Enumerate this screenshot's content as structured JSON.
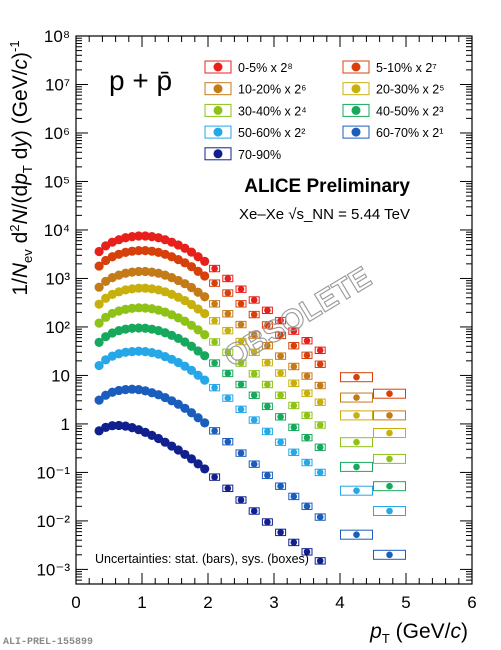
{
  "chart_data": {
    "type": "scatter",
    "title": "ALICE Preliminary",
    "particle_label": "p + p̄",
    "system_label": "Xe–Xe √s_NN = 5.44 TeV",
    "footnote": "Uncertainties: stat. (bars), sys. (boxes)",
    "watermark": "OBSOLETE",
    "figure_id": "ALI-PREL-155899",
    "xlabel": "p_T (GeV/c)",
    "ylabel": "1/N_ev d²N/(dp_T dy) (GeV/c)⁻¹",
    "xlim": [
      0,
      6
    ],
    "ylim": [
      0.0005,
      100000000
    ],
    "yscale": "log",
    "x_ticks": [
      "0",
      "1",
      "2",
      "3",
      "4",
      "5",
      "6"
    ],
    "y_ticks": [
      "10⁻³",
      "10⁻²",
      "10⁻¹",
      "1",
      "10",
      "10²",
      "10³",
      "10⁴",
      "10⁵",
      "10⁶",
      "10⁷",
      "10⁸"
    ],
    "legend_position": "top-right",
    "x": [
      0.35,
      0.45,
      0.55,
      0.65,
      0.75,
      0.85,
      0.95,
      1.05,
      1.15,
      1.25,
      1.35,
      1.45,
      1.55,
      1.65,
      1.75,
      1.85,
      1.95,
      2.1,
      2.3,
      2.5,
      2.7,
      2.9,
      3.1,
      3.3,
      3.5,
      3.7,
      4.25,
      4.75
    ],
    "series": [
      {
        "name": "0-5% x 2⁸",
        "color": "#e8201b",
        "values": [
          3600,
          4700,
          5600,
          6300,
          6900,
          7300,
          7500,
          7500,
          7300,
          6900,
          6300,
          5600,
          4900,
          4200,
          3500,
          2800,
          2250,
          1600,
          1000,
          600,
          360,
          220,
          135,
          82,
          52,
          33,
          null,
          null
        ]
      },
      {
        "name": "5-10% x 2⁷",
        "color": "#d8400b",
        "values": [
          1800,
          2350,
          2800,
          3150,
          3450,
          3650,
          3750,
          3750,
          3650,
          3450,
          3150,
          2800,
          2450,
          2100,
          1750,
          1400,
          1125,
          800,
          500,
          300,
          180,
          110,
          67,
          41,
          26,
          17,
          9.2,
          4.2
        ]
      },
      {
        "name": "10-20% x 2⁶",
        "color": "#c57a18",
        "values": [
          660,
          870,
          1040,
          1170,
          1280,
          1350,
          1390,
          1390,
          1350,
          1280,
          1170,
          1040,
          910,
          780,
          650,
          520,
          420,
          300,
          187,
          112,
          68,
          41,
          25,
          15.3,
          9.7,
          6.2,
          3.5,
          1.5
        ]
      },
      {
        "name": "20-30% x 2⁵",
        "color": "#c8b00c",
        "values": [
          295,
          390,
          470,
          530,
          580,
          610,
          630,
          630,
          610,
          580,
          530,
          470,
          410,
          350,
          290,
          235,
          188,
          134,
          84,
          50,
          30,
          18.4,
          11.2,
          6.9,
          4.3,
          2.8,
          1.5,
          0.65
        ]
      },
      {
        "name": "30-40% x 2⁴",
        "color": "#8ec217",
        "values": [
          120,
          158,
          190,
          213,
          230,
          242,
          248,
          246,
          237,
          222,
          202,
          178,
          154,
          131,
          108,
          87,
          69,
          49,
          30,
          18,
          10.8,
          6.5,
          3.9,
          2.4,
          1.5,
          0.95,
          0.42,
          0.19
        ]
      },
      {
        "name": "40-50% x 2³",
        "color": "#16a95d",
        "values": [
          48,
          63,
          75,
          84,
          90,
          94,
          95,
          94,
          90,
          84,
          76,
          67,
          58,
          49,
          40,
          32,
          25.5,
          18,
          11,
          6.5,
          3.9,
          2.3,
          1.4,
          0.85,
          0.52,
          0.33,
          0.13,
          0.052
        ]
      },
      {
        "name": "50-60% x 2²",
        "color": "#25a7e8",
        "values": [
          16,
          21,
          25,
          28,
          30,
          31,
          31.5,
          31,
          29.5,
          27.5,
          24.5,
          21.5,
          18.5,
          15.5,
          12.7,
          10.1,
          8,
          5.6,
          3.4,
          2,
          1.2,
          0.7,
          0.42,
          0.26,
          0.16,
          0.1,
          0.042,
          0.016
        ]
      },
      {
        "name": "60-70% x 2¹",
        "color": "#1b5dbd",
        "values": [
          3.1,
          3.9,
          4.5,
          4.9,
          5.1,
          5.2,
          5.1,
          4.8,
          4.4,
          4,
          3.5,
          3,
          2.55,
          2.1,
          1.7,
          1.34,
          1.05,
          0.72,
          0.43,
          0.25,
          0.148,
          0.087,
          0.052,
          0.032,
          0.02,
          0.012,
          0.0052,
          0.002
        ]
      },
      {
        "name": "70-90%",
        "color": "#11208f",
        "values": [
          0.72,
          0.85,
          0.92,
          0.93,
          0.9,
          0.84,
          0.76,
          0.67,
          0.58,
          0.5,
          0.42,
          0.35,
          0.29,
          0.235,
          0.19,
          0.15,
          0.118,
          0.08,
          0.047,
          0.027,
          0.016,
          0.0095,
          0.0058,
          0.0036,
          0.0023,
          0.0015,
          null,
          null
        ]
      }
    ]
  }
}
